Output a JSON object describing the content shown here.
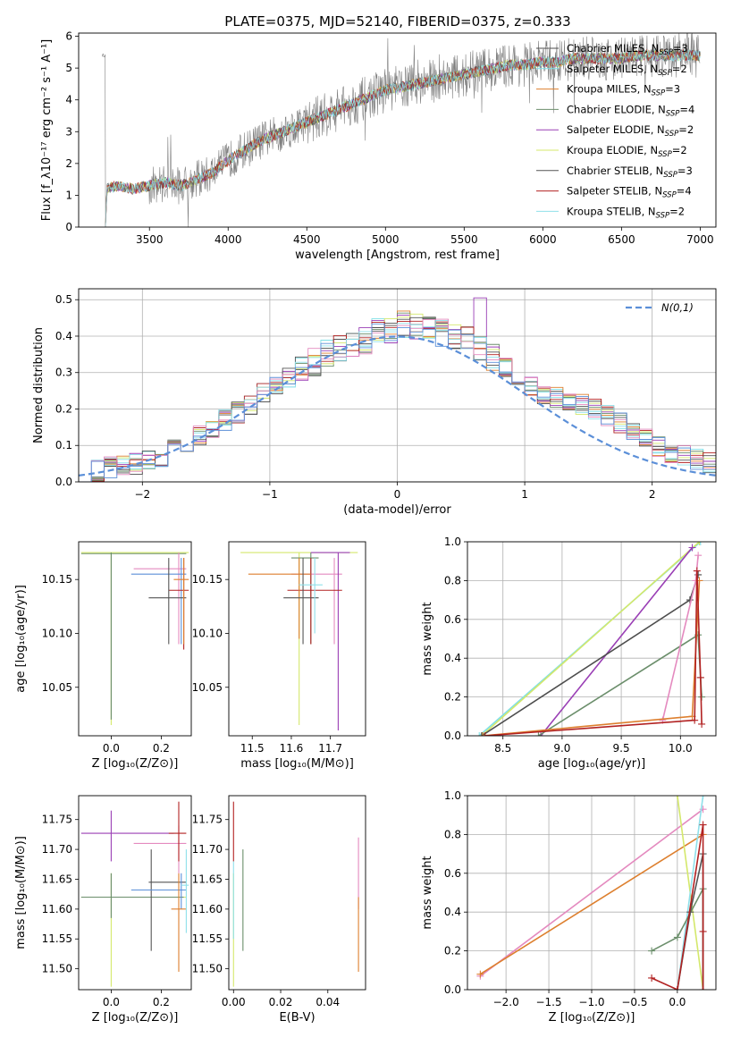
{
  "title": "PLATE=0375, MJD=52140, FIBERID=0375, z=0.333",
  "chart_data": [
    {
      "id": "spectrum",
      "type": "line",
      "xlabel": "wavelength [Angstrom, rest frame]",
      "ylabel": "Flux [f_λ10⁻¹⁷ erg cm⁻² s⁻¹ A⁻¹]",
      "xlim": [
        3050,
        7100
      ],
      "ylim": [
        0,
        6.1
      ],
      "xticks": [
        3500,
        4000,
        4500,
        5000,
        5500,
        6000,
        6500,
        7000
      ],
      "yticks": [
        0,
        1,
        2,
        3,
        4,
        5,
        6
      ],
      "observed_color": "#808080",
      "observed_coarse": [
        [
          3220,
          0.1
        ],
        [
          3230,
          1.2
        ],
        [
          3300,
          1.3
        ],
        [
          3400,
          1.2
        ],
        [
          3500,
          1.3
        ],
        [
          3600,
          1.4
        ],
        [
          3700,
          1.3
        ],
        [
          3800,
          1.5
        ],
        [
          3900,
          1.7
        ],
        [
          4000,
          2.1
        ],
        [
          4100,
          2.4
        ],
        [
          4200,
          2.7
        ],
        [
          4300,
          2.9
        ],
        [
          4400,
          3.1
        ],
        [
          4500,
          3.3
        ],
        [
          4600,
          3.5
        ],
        [
          4700,
          3.7
        ],
        [
          4800,
          3.9
        ],
        [
          4900,
          4.1
        ],
        [
          5000,
          4.3
        ],
        [
          5100,
          4.4
        ],
        [
          5200,
          4.5
        ],
        [
          5300,
          4.6
        ],
        [
          5400,
          4.7
        ],
        [
          5500,
          4.8
        ],
        [
          5600,
          4.9
        ],
        [
          5700,
          5.0
        ],
        [
          5800,
          5.1
        ],
        [
          5900,
          5.1
        ],
        [
          6000,
          5.2
        ],
        [
          6100,
          5.2
        ],
        [
          6200,
          5.3
        ],
        [
          6300,
          5.3
        ],
        [
          6400,
          5.3
        ],
        [
          6500,
          5.3
        ],
        [
          6600,
          5.4
        ],
        [
          6700,
          5.4
        ],
        [
          6800,
          5.4
        ],
        [
          6900,
          5.4
        ],
        [
          7000,
          5.4
        ]
      ],
      "legend": [
        {
          "label": "Chabrier MILES, N_SSP=3",
          "color": "#4d4d4d"
        },
        {
          "label": "Salpeter MILES, N_SSP=2",
          "color": "#7fdfe6"
        },
        {
          "label": "Kroupa MILES, N_SSP=3",
          "color": "#dd7f2e"
        },
        {
          "label": "Chabrier ELODIE, N_SSP=4",
          "color": "#6b8e6b"
        },
        {
          "label": "Salpeter ELODIE, N_SSP=2",
          "color": "#9a3fb5"
        },
        {
          "label": "Kroupa ELODIE, N_SSP=2",
          "color": "#d4e86b"
        },
        {
          "label": "Chabrier STELIB, N_SSP=3",
          "color": "#555555"
        },
        {
          "label": "Salpeter STELIB, N_SSP=4",
          "color": "#b22222"
        },
        {
          "label": "Kroupa STELIB, N_SSP=2",
          "color": "#8fe0ea"
        }
      ]
    },
    {
      "id": "residuals",
      "type": "line",
      "xlabel": "(data-model)/error",
      "ylabel": "Normed distribution",
      "xlim": [
        -2.5,
        2.5
      ],
      "ylim": [
        0,
        0.53
      ],
      "xticks": [
        -2,
        -1,
        0,
        1,
        2
      ],
      "yticks": [
        0.0,
        0.1,
        0.2,
        0.3,
        0.4,
        0.5
      ],
      "grid": true,
      "legend_label": "N(0,1)",
      "gaussian_color": "#5b8fd8",
      "hist_bin_width": 0.1,
      "hist_center": [
        0.02,
        0.03,
        0.04,
        0.05,
        0.05,
        0.06,
        0.07,
        0.09,
        0.11,
        0.13,
        0.15,
        0.17,
        0.19,
        0.21,
        0.24,
        0.27,
        0.29,
        0.31,
        0.33,
        0.35,
        0.37,
        0.38,
        0.39,
        0.41,
        0.42,
        0.43,
        0.43,
        0.42,
        0.41,
        0.4,
        0.39,
        0.37,
        0.34,
        0.31,
        0.28,
        0.26,
        0.24,
        0.23,
        0.22,
        0.21,
        0.2,
        0.18,
        0.16,
        0.14,
        0.12,
        0.1,
        0.08,
        0.07,
        0.06,
        0.05
      ],
      "series_colors": [
        "#4d4d4d",
        "#7fdfe6",
        "#dd7f2e",
        "#6b8e6b",
        "#9a3fb5",
        "#d4e86b",
        "#555555",
        "#b22222",
        "#8fe0ea",
        "#e48abf",
        "#5b8fd8"
      ]
    },
    {
      "id": "age_vs_Z",
      "type": "scatter",
      "xlabel": "Z [log₁₀(Z/Z⊙)]",
      "ylabel": "age  [log₁₀(age/yr)]",
      "xlim": [
        -0.13,
        0.32
      ],
      "ylim": [
        10.005,
        10.185
      ],
      "xticks": [
        0.0,
        0.2
      ],
      "yticks": [
        10.05,
        10.1,
        10.15
      ],
      "points": [
        {
          "x": 0.0,
          "y": 10.175,
          "xlo": -0.12,
          "xhi": 0.31,
          "ylo": 10.015,
          "yhi": 10.175,
          "color": "#d4e86b"
        },
        {
          "x": 0.0,
          "y": 10.174,
          "xlo": -0.12,
          "xhi": 0.3,
          "ylo": 10.02,
          "yhi": 10.175,
          "color": "#6b8e6b"
        },
        {
          "x": 0.27,
          "y": 10.16,
          "xlo": 0.09,
          "xhi": 0.3,
          "ylo": 10.09,
          "yhi": 10.175,
          "color": "#e48abf"
        },
        {
          "x": 0.28,
          "y": 10.155,
          "xlo": 0.08,
          "xhi": 0.3,
          "ylo": 10.09,
          "yhi": 10.17,
          "color": "#5b8fd8"
        },
        {
          "x": 0.29,
          "y": 10.14,
          "xlo": 0.23,
          "xhi": 0.31,
          "ylo": 10.085,
          "yhi": 10.17,
          "color": "#b22222"
        },
        {
          "x": 0.23,
          "y": 10.133,
          "xlo": 0.15,
          "xhi": 0.3,
          "ylo": 10.09,
          "yhi": 10.17,
          "color": "#555555"
        },
        {
          "x": 0.29,
          "y": 10.15,
          "xlo": 0.25,
          "xhi": 0.31,
          "ylo": 10.09,
          "yhi": 10.17,
          "color": "#dd7f2e"
        }
      ]
    },
    {
      "id": "age_vs_mass",
      "type": "scatter",
      "xlabel": "mass [log₁₀(M/M⊙)]",
      "xlim": [
        11.44,
        11.79
      ],
      "ylim": [
        10.005,
        10.185
      ],
      "xticks": [
        11.5,
        11.6,
        11.7
      ],
      "yticks": [
        10.05,
        10.1,
        10.15
      ],
      "points": [
        {
          "x": 11.62,
          "y": 10.175,
          "xlo": 11.47,
          "xhi": 11.77,
          "ylo": 10.015,
          "yhi": 10.175,
          "color": "#d4e86b"
        },
        {
          "x": 11.65,
          "y": 10.17,
          "xlo": 11.6,
          "xhi": 11.67,
          "ylo": 10.09,
          "yhi": 10.175,
          "color": "#6b8e6b"
        },
        {
          "x": 11.71,
          "y": 10.155,
          "xlo": 11.6,
          "xhi": 11.73,
          "ylo": 10.09,
          "yhi": 10.17,
          "color": "#e48abf"
        },
        {
          "x": 11.72,
          "y": 10.175,
          "xlo": 11.65,
          "xhi": 11.75,
          "ylo": 10.01,
          "yhi": 10.175,
          "color": "#9a3fb5"
        },
        {
          "x": 11.65,
          "y": 10.14,
          "xlo": 11.59,
          "xhi": 11.73,
          "ylo": 10.09,
          "yhi": 10.17,
          "color": "#b22222"
        },
        {
          "x": 11.62,
          "y": 10.155,
          "xlo": 11.49,
          "xhi": 11.65,
          "ylo": 10.095,
          "yhi": 10.17,
          "color": "#dd7f2e"
        },
        {
          "x": 11.63,
          "y": 10.133,
          "xlo": 11.58,
          "xhi": 11.67,
          "ylo": 10.09,
          "yhi": 10.17,
          "color": "#555555"
        },
        {
          "x": 11.66,
          "y": 10.145,
          "xlo": 11.62,
          "xhi": 11.68,
          "ylo": 10.1,
          "yhi": 10.17,
          "color": "#8fe0ea"
        }
      ]
    },
    {
      "id": "weight_vs_age",
      "type": "line",
      "xlabel": "age  [log₁₀(age/yr)]",
      "ylabel": "mass weight",
      "xlim": [
        8.2,
        10.3
      ],
      "ylim": [
        0,
        1.0
      ],
      "xticks": [
        8.5,
        9.0,
        9.5,
        10.0
      ],
      "yticks": [
        0.0,
        0.2,
        0.4,
        0.6,
        0.8,
        1.0
      ],
      "grid": true,
      "series": [
        {
          "color": "#7fdfe6",
          "points": [
            [
              8.3,
              0.0
            ],
            [
              10.17,
              1.0
            ]
          ]
        },
        {
          "color": "#d4e86b",
          "points": [
            [
              8.32,
              0.0
            ],
            [
              10.16,
              1.0
            ]
          ]
        },
        {
          "color": "#9a3fb5",
          "points": [
            [
              8.82,
              0.0
            ],
            [
              10.1,
              0.97
            ]
          ]
        },
        {
          "color": "#4d4d4d",
          "points": [
            [
              8.32,
              0.0
            ],
            [
              10.08,
              0.7
            ],
            [
              10.15,
              0.83
            ]
          ]
        },
        {
          "color": "#6b8e6b",
          "points": [
            [
              8.8,
              0.0
            ],
            [
              10.15,
              0.52
            ],
            [
              10.17,
              0.3
            ],
            [
              10.18,
              0.2
            ]
          ]
        },
        {
          "color": "#e48abf",
          "points": [
            [
              9.85,
              0.08
            ],
            [
              10.13,
              0.8
            ],
            [
              10.15,
              0.93
            ]
          ]
        },
        {
          "color": "#dd7f2e",
          "points": [
            [
              8.33,
              0.0
            ],
            [
              10.1,
              0.1
            ],
            [
              10.16,
              0.8
            ]
          ]
        },
        {
          "color": "#b22222",
          "points": [
            [
              8.35,
              0.0
            ],
            [
              10.12,
              0.08
            ],
            [
              10.14,
              0.85
            ],
            [
              10.17,
              0.3
            ],
            [
              10.18,
              0.06
            ]
          ]
        }
      ]
    },
    {
      "id": "mass_vs_Z",
      "type": "scatter",
      "xlabel": "Z [log₁₀(Z/Z⊙)]",
      "ylabel": "mass [log₁₀(M/M⊙)]",
      "xlim": [
        -0.13,
        0.32
      ],
      "ylim": [
        11.465,
        11.79
      ],
      "xticks": [
        0.0,
        0.2
      ],
      "yticks": [
        11.5,
        11.55,
        11.6,
        11.65,
        11.7,
        11.75
      ],
      "points": [
        {
          "x": 0.0,
          "y": 11.727,
          "xlo": -0.12,
          "xhi": 0.25,
          "ylo": 11.68,
          "yhi": 11.765,
          "color": "#9a3fb5"
        },
        {
          "x": 0.0,
          "y": 11.62,
          "xlo": -0.12,
          "xhi": 0.3,
          "ylo": 11.47,
          "yhi": 11.66,
          "color": "#d4e86b"
        },
        {
          "x": 0.0,
          "y": 11.62,
          "xlo": -0.12,
          "xhi": 0.29,
          "ylo": 11.585,
          "yhi": 11.66,
          "color": "#6b8e6b"
        },
        {
          "x": 0.27,
          "y": 11.71,
          "xlo": 0.09,
          "xhi": 0.3,
          "ylo": 11.66,
          "yhi": 11.74,
          "color": "#e48abf"
        },
        {
          "x": 0.27,
          "y": 11.727,
          "xlo": 0.23,
          "xhi": 0.3,
          "ylo": 11.68,
          "yhi": 11.78,
          "color": "#b22222"
        },
        {
          "x": 0.16,
          "y": 11.645,
          "xlo": 0.15,
          "xhi": 0.3,
          "ylo": 11.53,
          "yhi": 11.7,
          "color": "#555555"
        },
        {
          "x": 0.28,
          "y": 11.632,
          "xlo": 0.08,
          "xhi": 0.3,
          "ylo": 11.6,
          "yhi": 11.66,
          "color": "#5b8fd8"
        },
        {
          "x": 0.27,
          "y": 11.6,
          "xlo": 0.24,
          "xhi": 0.3,
          "ylo": 11.495,
          "yhi": 11.66,
          "color": "#dd7f2e"
        },
        {
          "x": 0.3,
          "y": 11.64,
          "xlo": 0.28,
          "xhi": 0.31,
          "ylo": 11.56,
          "yhi": 11.7,
          "color": "#8fe0ea"
        }
      ]
    },
    {
      "id": "mass_vs_EBV",
      "type": "scatter",
      "xlabel": "E(B-V)",
      "xlim": [
        -0.002,
        0.056
      ],
      "ylim": [
        11.465,
        11.79
      ],
      "xticks": [
        0.0,
        0.02,
        0.04
      ],
      "yticks": [
        11.5,
        11.55,
        11.6,
        11.65,
        11.7,
        11.75
      ],
      "points": [
        {
          "x": 0.0,
          "y": 11.727,
          "ylo": 11.68,
          "yhi": 11.78,
          "color": "#b22222"
        },
        {
          "x": 0.0,
          "y": 11.62,
          "ylo": 11.47,
          "yhi": 11.66,
          "color": "#d4e86b"
        },
        {
          "x": 0.0,
          "y": 11.63,
          "ylo": 11.55,
          "yhi": 11.68,
          "color": "#8fe0ea"
        },
        {
          "x": 0.004,
          "y": 11.64,
          "ylo": 11.53,
          "yhi": 11.7,
          "color": "#6b8e6b"
        },
        {
          "x": 0.053,
          "y": 11.66,
          "ylo": 11.6,
          "yhi": 11.72,
          "color": "#e48abf"
        },
        {
          "x": 0.053,
          "y": 11.6,
          "ylo": 11.495,
          "yhi": 11.62,
          "color": "#dd7f2e"
        }
      ]
    },
    {
      "id": "weight_vs_Z",
      "type": "line",
      "xlabel": "Z [log₁₀(Z/Z⊙)]",
      "ylabel": "mass weight",
      "xlim": [
        -2.45,
        0.45
      ],
      "ylim": [
        0,
        1.0
      ],
      "xticks": [
        -2.0,
        -1.5,
        -1.0,
        -0.5,
        0.0
      ],
      "yticks": [
        0.0,
        0.2,
        0.4,
        0.6,
        0.8,
        1.0
      ],
      "grid": true,
      "series": [
        {
          "color": "#e48abf",
          "points": [
            [
              -2.3,
              0.07
            ],
            [
              0.3,
              0.93
            ]
          ]
        },
        {
          "color": "#dd7f2e",
          "points": [
            [
              -2.3,
              0.08
            ],
            [
              0.3,
              0.8
            ]
          ]
        },
        {
          "color": "#d4e86b",
          "points": [
            [
              0.0,
              1.0
            ],
            [
              0.3,
              0.0
            ]
          ]
        },
        {
          "color": "#8fe0ea",
          "points": [
            [
              0.0,
              0.0
            ],
            [
              0.3,
              1.0
            ]
          ]
        },
        {
          "color": "#6b8e6b",
          "points": [
            [
              -0.3,
              0.2
            ],
            [
              0.0,
              0.27
            ],
            [
              0.3,
              0.52
            ],
            [
              0.3,
              0.0
            ]
          ]
        },
        {
          "color": "#555555",
          "points": [
            [
              0.0,
              0.0
            ],
            [
              0.15,
              0.4
            ],
            [
              0.3,
              0.7
            ],
            [
              0.3,
              0.0
            ]
          ]
        },
        {
          "color": "#b22222",
          "points": [
            [
              -0.3,
              0.06
            ],
            [
              0.0,
              0.0
            ],
            [
              0.3,
              0.85
            ],
            [
              0.3,
              0.3
            ],
            [
              0.3,
              0.0
            ]
          ]
        }
      ]
    }
  ]
}
